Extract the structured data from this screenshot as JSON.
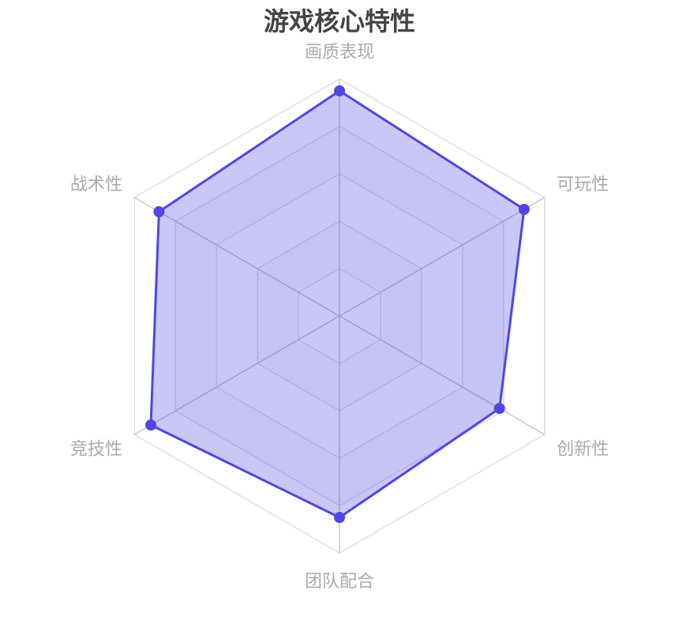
{
  "chart_data": {
    "type": "radar",
    "title": "游戏核心特性",
    "indicators": [
      "画质表现",
      "可玩性",
      "创新性",
      "团队配合",
      "竞技性",
      "战术性"
    ],
    "max": 100,
    "split_number": 5,
    "series": [
      {
        "values": [
          95,
          90,
          78,
          85,
          92,
          88
        ]
      }
    ],
    "colors": {
      "line": "#4f46e5",
      "area": "rgba(79,70,229,0.3)",
      "title": "#444444",
      "label": "#aaaaaa",
      "axis": "#bbbbbb",
      "split_line": "#dcdfee"
    }
  }
}
